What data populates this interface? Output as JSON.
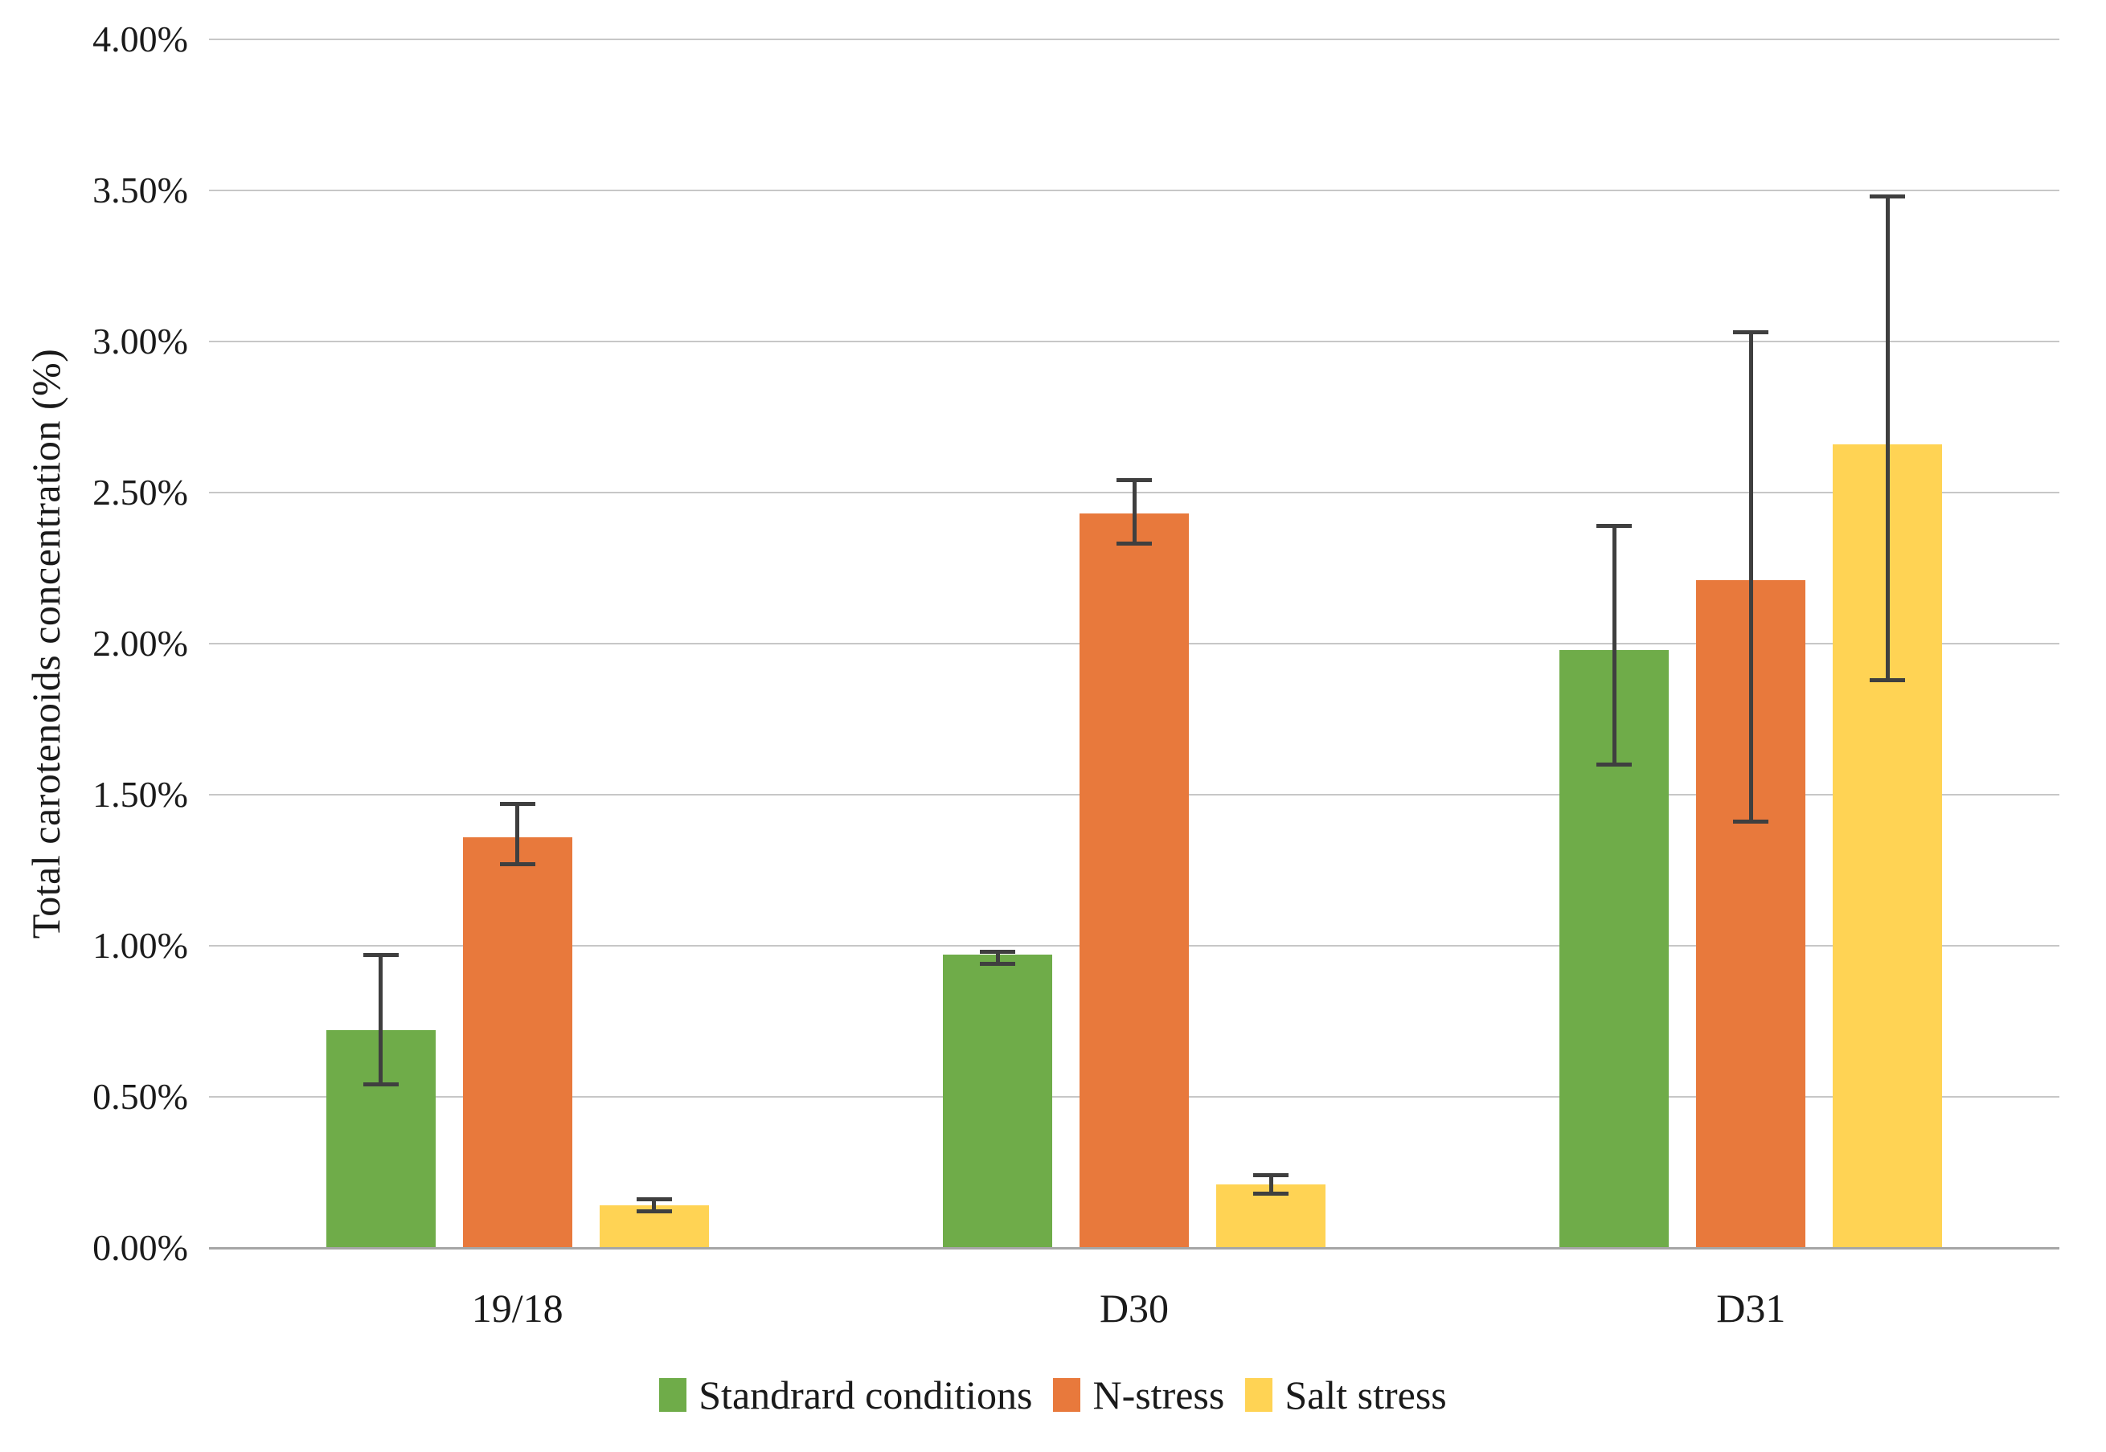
{
  "chart_data": {
    "type": "bar",
    "ylabel": "Total carotenoids concentration (%)",
    "xlabel": "",
    "ylim": [
      0,
      4
    ],
    "ytick_labels": [
      "0.00%",
      "0.50%",
      "1.00%",
      "1.50%",
      "2.00%",
      "2.50%",
      "3.00%",
      "3.50%",
      "4.00%"
    ],
    "categories": [
      "19/18",
      "D30",
      "D31"
    ],
    "series": [
      {
        "name": "Standrard conditions",
        "color": "#6FAC49",
        "values": [
          0.72,
          0.97,
          1.98
        ],
        "error_low": [
          0.54,
          0.94,
          1.6
        ],
        "error_high": [
          0.97,
          0.98,
          2.39
        ]
      },
      {
        "name": "N-stress",
        "color": "#E8793C",
        "values": [
          1.36,
          2.43,
          2.21
        ],
        "error_low": [
          1.27,
          2.33,
          1.41
        ],
        "error_high": [
          1.47,
          2.54,
          3.03
        ]
      },
      {
        "name": "Salt stress",
        "color": "#FFD354",
        "values": [
          0.14,
          0.21,
          2.66
        ],
        "error_low": [
          0.12,
          0.18,
          1.88
        ],
        "error_high": [
          0.16,
          0.24,
          3.48
        ]
      }
    ],
    "grid": true,
    "legend_position": "bottom",
    "style": {
      "background": "#FFFFFF",
      "grid_color": "#C7C7C7",
      "axis_color": "#A6A6A6",
      "error_color": "#3F3F3F",
      "text_color": "#1A1A1A"
    }
  }
}
